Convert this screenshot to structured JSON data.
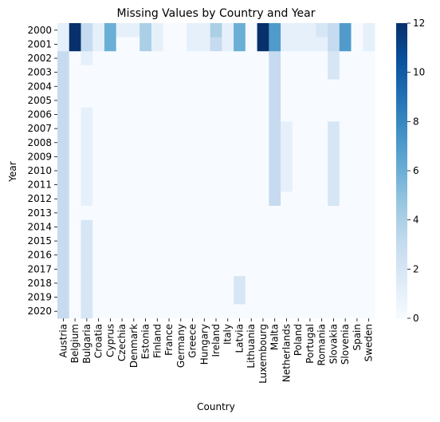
{
  "chart_data": {
    "type": "heatmap",
    "title": "Missing Values by Country and Year",
    "xlabel": "Country",
    "ylabel": "Year",
    "x_categories": [
      "Austria",
      "Belgium",
      "Bulgaria",
      "Croatia",
      "Cyprus",
      "Czechia",
      "Denmark",
      "Estonia",
      "Finland",
      "France",
      "Germany",
      "Greece",
      "Hungary",
      "Ireland",
      "Italy",
      "Latvia",
      "Lithuania",
      "Luxembourg",
      "Malta",
      "Netherlands",
      "Poland",
      "Portugal",
      "Romania",
      "Slovakia",
      "Slovenia",
      "Spain",
      "Sweden"
    ],
    "y_categories": [
      "2000",
      "2001",
      "2002",
      "2003",
      "2004",
      "2005",
      "2006",
      "2007",
      "2008",
      "2009",
      "2010",
      "2011",
      "2012",
      "2013",
      "2014",
      "2015",
      "2016",
      "2017",
      "2018",
      "2019",
      "2020"
    ],
    "values": [
      [
        1,
        12,
        3,
        1,
        6,
        1,
        1,
        4,
        1,
        0,
        0,
        1,
        1,
        4,
        1,
        6,
        0,
        12,
        7,
        1,
        1,
        1,
        2,
        3,
        7,
        0,
        1
      ],
      [
        1,
        12,
        3,
        1,
        6,
        0,
        0,
        4,
        1,
        0,
        0,
        1,
        1,
        3,
        1,
        6,
        0,
        12,
        7,
        1,
        1,
        1,
        1,
        3,
        7,
        0,
        1
      ],
      [
        3,
        0,
        1,
        0,
        0,
        0,
        0,
        0,
        0,
        0,
        0,
        0,
        0,
        0,
        0,
        0,
        0,
        0,
        3,
        0,
        0,
        0,
        0,
        2,
        0,
        0,
        0
      ],
      [
        3,
        0,
        0,
        0,
        0,
        0,
        0,
        0,
        0,
        0,
        0,
        0,
        0,
        0,
        0,
        0,
        0,
        0,
        3,
        0,
        0,
        0,
        0,
        2,
        0,
        0,
        0
      ],
      [
        3,
        0,
        0,
        0,
        0,
        0,
        0,
        0,
        0,
        0,
        0,
        0,
        0,
        0,
        0,
        0,
        0,
        0,
        3,
        0,
        0,
        0,
        0,
        0,
        0,
        0,
        0
      ],
      [
        3,
        0,
        0,
        0,
        0,
        0,
        0,
        0,
        0,
        0,
        0,
        0,
        0,
        0,
        0,
        0,
        0,
        0,
        3,
        0,
        0,
        0,
        0,
        0,
        0,
        0,
        0
      ],
      [
        3,
        0,
        1,
        0,
        0,
        0,
        0,
        0,
        0,
        0,
        0,
        0,
        0,
        0,
        0,
        0,
        0,
        0,
        3,
        0,
        0,
        0,
        0,
        0,
        0,
        0,
        0
      ],
      [
        3,
        0,
        1,
        0,
        0,
        0,
        0,
        0,
        0,
        0,
        0,
        0,
        0,
        0,
        0,
        0,
        0,
        0,
        3,
        1,
        0,
        0,
        0,
        2,
        0,
        0,
        0
      ],
      [
        3,
        0,
        1,
        0,
        0,
        0,
        0,
        0,
        0,
        0,
        0,
        0,
        0,
        0,
        0,
        0,
        0,
        0,
        3,
        1,
        0,
        0,
        0,
        2,
        0,
        0,
        0
      ],
      [
        3,
        0,
        1,
        0,
        0,
        0,
        0,
        0,
        0,
        0,
        0,
        0,
        0,
        0,
        0,
        0,
        0,
        0,
        3,
        1,
        0,
        0,
        0,
        2,
        0,
        0,
        0
      ],
      [
        3,
        0,
        1,
        0,
        0,
        0,
        0,
        0,
        0,
        0,
        0,
        0,
        0,
        0,
        0,
        0,
        0,
        0,
        3,
        1,
        0,
        0,
        0,
        2,
        0,
        0,
        0
      ],
      [
        3,
        0,
        1,
        0,
        0,
        0,
        0,
        0,
        0,
        0,
        0,
        0,
        0,
        0,
        0,
        0,
        0,
        0,
        3,
        1,
        0,
        0,
        0,
        2,
        0,
        0,
        0
      ],
      [
        3,
        0,
        1,
        0,
        0,
        0,
        0,
        0,
        0,
        0,
        0,
        0,
        0,
        0,
        0,
        0,
        0,
        0,
        3,
        0,
        0,
        0,
        0,
        2,
        0,
        0,
        0
      ],
      [
        3,
        0,
        0,
        0,
        0,
        0,
        0,
        0,
        0,
        0,
        0,
        0,
        0,
        0,
        0,
        0,
        0,
        0,
        0,
        0,
        0,
        0,
        0,
        0,
        0,
        0,
        0
      ],
      [
        3,
        0,
        2,
        0,
        0,
        0,
        0,
        0,
        0,
        0,
        0,
        0,
        0,
        0,
        0,
        0,
        0,
        0,
        0,
        0,
        0,
        0,
        0,
        0,
        0,
        0,
        0
      ],
      [
        3,
        0,
        2,
        0,
        0,
        0,
        0,
        0,
        0,
        0,
        0,
        0,
        0,
        0,
        0,
        0,
        0,
        0,
        0,
        0,
        0,
        0,
        0,
        0,
        0,
        0,
        0
      ],
      [
        3,
        0,
        2,
        0,
        0,
        0,
        0,
        0,
        0,
        0,
        0,
        0,
        0,
        0,
        0,
        0,
        0,
        0,
        0,
        0,
        0,
        0,
        0,
        0,
        0,
        0,
        0
      ],
      [
        3,
        0,
        2,
        0,
        0,
        0,
        0,
        0,
        0,
        0,
        0,
        0,
        0,
        0,
        0,
        0,
        0,
        0,
        0,
        0,
        0,
        0,
        0,
        0,
        0,
        0,
        0
      ],
      [
        3,
        0,
        2,
        0,
        0,
        0,
        0,
        0,
        0,
        0,
        0,
        0,
        0,
        0,
        0,
        2,
        0,
        0,
        0,
        0,
        0,
        0,
        0,
        0,
        0,
        0,
        0
      ],
      [
        3,
        0,
        2,
        0,
        0,
        0,
        0,
        0,
        0,
        0,
        0,
        0,
        0,
        0,
        0,
        2,
        0,
        0,
        0,
        0,
        0,
        0,
        0,
        0,
        0,
        0,
        0
      ],
      [
        3,
        0,
        2,
        0,
        0,
        0,
        0,
        0,
        0,
        0,
        0,
        0,
        0,
        0,
        0,
        0,
        0,
        0,
        0,
        0,
        0,
        0,
        0,
        0,
        0,
        0,
        0
      ]
    ],
    "colorbar": {
      "range": [
        0,
        12
      ],
      "ticks": [
        0,
        2,
        4,
        6,
        8,
        10,
        12
      ],
      "colormap": "Blues",
      "placement": "right"
    },
    "grid": false
  }
}
